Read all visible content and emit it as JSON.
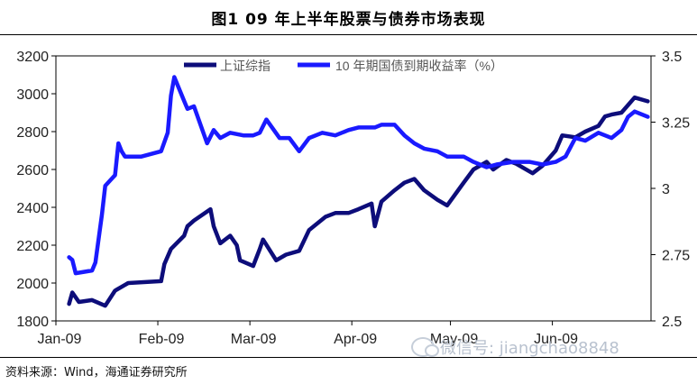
{
  "header": {
    "title": "图1  09 年上半年股票与债券市场表现"
  },
  "footer": {
    "source": "资料来源：Wind，海通证券研究所"
  },
  "watermark": {
    "text": "微信号: jiangchao8848",
    "icon": "wechat-icon"
  },
  "colors": {
    "shanghai": "#0d0d7a",
    "bond": "#1a1aff",
    "axis": "#000000"
  },
  "chart_data": {
    "type": "line",
    "title": "",
    "x_tick_labels": [
      "Jan-09",
      "Feb-09",
      "Mar-09",
      "Apr-09",
      "May-09",
      "Jun-09"
    ],
    "y_left": {
      "min": 1800,
      "max": 3200,
      "ticks": [
        1800,
        2000,
        2200,
        2400,
        2600,
        2800,
        3000,
        3200
      ]
    },
    "y_right": {
      "min": 2.5,
      "max": 3.5,
      "ticks": [
        "2.5",
        "2.75",
        "3",
        "3.25",
        "3.5"
      ]
    },
    "legend": [
      "上证综指",
      "10 年期国债到期收益率（%）"
    ],
    "legend_position": "top",
    "series": [
      {
        "name": "上证综指",
        "axis": "left",
        "points": [
          [
            "2009-01-05",
            1890
          ],
          [
            "2009-01-06",
            1950
          ],
          [
            "2009-01-08",
            1900
          ],
          [
            "2009-01-12",
            1910
          ],
          [
            "2009-01-16",
            1880
          ],
          [
            "2009-01-19",
            1960
          ],
          [
            "2009-01-22",
            1990
          ],
          [
            "2009-01-23",
            2000
          ],
          [
            "2009-02-02",
            2010
          ],
          [
            "2009-02-03",
            2100
          ],
          [
            "2009-02-05",
            2180
          ],
          [
            "2009-02-09",
            2250
          ],
          [
            "2009-02-10",
            2300
          ],
          [
            "2009-02-12",
            2330
          ],
          [
            "2009-02-17",
            2390
          ],
          [
            "2009-02-18",
            2300
          ],
          [
            "2009-02-20",
            2210
          ],
          [
            "2009-02-23",
            2250
          ],
          [
            "2009-02-25",
            2200
          ],
          [
            "2009-02-26",
            2120
          ],
          [
            "2009-03-02",
            2090
          ],
          [
            "2009-03-04",
            2180
          ],
          [
            "2009-03-05",
            2230
          ],
          [
            "2009-03-09",
            2120
          ],
          [
            "2009-03-12",
            2150
          ],
          [
            "2009-03-16",
            2170
          ],
          [
            "2009-03-19",
            2280
          ],
          [
            "2009-03-24",
            2350
          ],
          [
            "2009-03-27",
            2370
          ],
          [
            "2009-03-31",
            2370
          ],
          [
            "2009-04-03",
            2390
          ],
          [
            "2009-04-07",
            2420
          ],
          [
            "2009-04-08",
            2300
          ],
          [
            "2009-04-10",
            2430
          ],
          [
            "2009-04-14",
            2490
          ],
          [
            "2009-04-17",
            2530
          ],
          [
            "2009-04-20",
            2550
          ],
          [
            "2009-04-23",
            2490
          ],
          [
            "2009-04-27",
            2440
          ],
          [
            "2009-04-30",
            2410
          ],
          [
            "2009-05-05",
            2530
          ],
          [
            "2009-05-08",
            2600
          ],
          [
            "2009-05-12",
            2640
          ],
          [
            "2009-05-14",
            2600
          ],
          [
            "2009-05-18",
            2650
          ],
          [
            "2009-05-21",
            2630
          ],
          [
            "2009-05-26",
            2580
          ],
          [
            "2009-05-29",
            2620
          ],
          [
            "2009-06-02",
            2700
          ],
          [
            "2009-06-04",
            2780
          ],
          [
            "2009-06-08",
            2770
          ],
          [
            "2009-06-11",
            2800
          ],
          [
            "2009-06-15",
            2830
          ],
          [
            "2009-06-17",
            2880
          ],
          [
            "2009-06-19",
            2890
          ],
          [
            "2009-06-22",
            2900
          ],
          [
            "2009-06-24",
            2940
          ],
          [
            "2009-06-26",
            2980
          ],
          [
            "2009-06-30",
            2960
          ]
        ]
      },
      {
        "name": "10 年期国债到期收益率（%）",
        "axis": "right",
        "points": [
          [
            "2009-01-05",
            2.74
          ],
          [
            "2009-01-06",
            2.73
          ],
          [
            "2009-01-07",
            2.68
          ],
          [
            "2009-01-12",
            2.69
          ],
          [
            "2009-01-13",
            2.72
          ],
          [
            "2009-01-15",
            2.9
          ],
          [
            "2009-01-16",
            3.01
          ],
          [
            "2009-01-19",
            3.05
          ],
          [
            "2009-01-20",
            3.17
          ],
          [
            "2009-01-21",
            3.14
          ],
          [
            "2009-01-22",
            3.12
          ],
          [
            "2009-01-27",
            3.12
          ],
          [
            "2009-02-02",
            3.14
          ],
          [
            "2009-02-04",
            3.21
          ],
          [
            "2009-02-05",
            3.35
          ],
          [
            "2009-02-06",
            3.42
          ],
          [
            "2009-02-09",
            3.33
          ],
          [
            "2009-02-10",
            3.3
          ],
          [
            "2009-02-12",
            3.31
          ],
          [
            "2009-02-16",
            3.17
          ],
          [
            "2009-02-18",
            3.22
          ],
          [
            "2009-02-20",
            3.19
          ],
          [
            "2009-02-23",
            3.21
          ],
          [
            "2009-02-27",
            3.2
          ],
          [
            "2009-03-02",
            3.2
          ],
          [
            "2009-03-04",
            3.21
          ],
          [
            "2009-03-06",
            3.26
          ],
          [
            "2009-03-10",
            3.19
          ],
          [
            "2009-03-13",
            3.19
          ],
          [
            "2009-03-16",
            3.14
          ],
          [
            "2009-03-19",
            3.19
          ],
          [
            "2009-03-23",
            3.21
          ],
          [
            "2009-03-27",
            3.2
          ],
          [
            "2009-03-31",
            3.22
          ],
          [
            "2009-04-03",
            3.23
          ],
          [
            "2009-04-08",
            3.23
          ],
          [
            "2009-04-10",
            3.24
          ],
          [
            "2009-04-14",
            3.24
          ],
          [
            "2009-04-17",
            3.2
          ],
          [
            "2009-04-20",
            3.17
          ],
          [
            "2009-04-23",
            3.15
          ],
          [
            "2009-04-27",
            3.14
          ],
          [
            "2009-04-30",
            3.12
          ],
          [
            "2009-05-05",
            3.12
          ],
          [
            "2009-05-08",
            3.1
          ],
          [
            "2009-05-12",
            3.08
          ],
          [
            "2009-05-15",
            3.09
          ],
          [
            "2009-05-20",
            3.1
          ],
          [
            "2009-05-25",
            3.1
          ],
          [
            "2009-05-29",
            3.09
          ],
          [
            "2009-06-02",
            3.1
          ],
          [
            "2009-06-05",
            3.12
          ],
          [
            "2009-06-08",
            3.19
          ],
          [
            "2009-06-11",
            3.18
          ],
          [
            "2009-06-15",
            3.21
          ],
          [
            "2009-06-17",
            3.2
          ],
          [
            "2009-06-19",
            3.19
          ],
          [
            "2009-06-22",
            3.22
          ],
          [
            "2009-06-24",
            3.27
          ],
          [
            "2009-06-26",
            3.29
          ],
          [
            "2009-06-30",
            3.27
          ]
        ]
      }
    ]
  }
}
